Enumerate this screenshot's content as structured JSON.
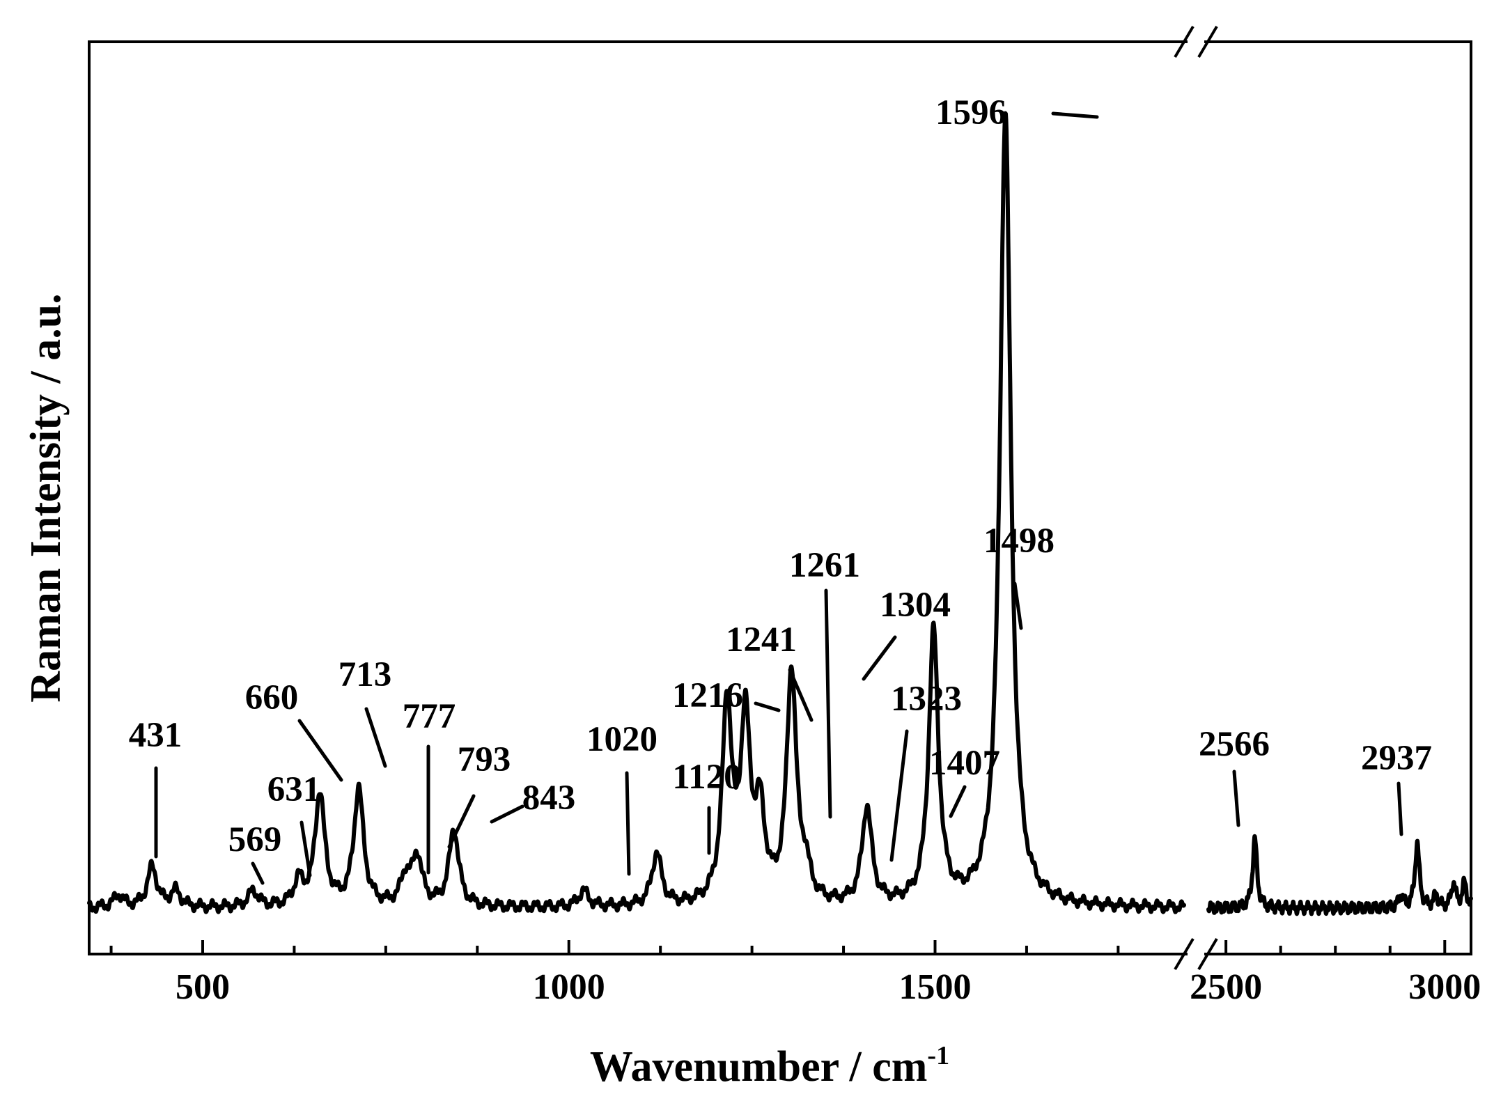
{
  "chart_data": {
    "type": "line",
    "xlabel": "Wavenumber / cm",
    "xlabel_superscript": "-1",
    "ylabel": "Raman Intensity / a.u.",
    "x_axis_break": true,
    "segments": [
      {
        "xlim": [
          345,
          1840
        ],
        "ticks": [
          500,
          1000,
          1500
        ],
        "minor_step": 125
      },
      {
        "xlim": [
          2460,
          3060
        ],
        "ticks": [
          2500,
          3000
        ],
        "minor_step": 125
      }
    ],
    "ylim": [
      0,
      100
    ],
    "baseline": 3.5,
    "peaks": [
      {
        "x": 385,
        "y": 5
      },
      {
        "x": 431,
        "y": 8.5,
        "label": "431"
      },
      {
        "x": 463,
        "y": 5.5
      },
      {
        "x": 569,
        "y": 5.5,
        "label": "569"
      },
      {
        "x": 631,
        "y": 6.5,
        "label": "631"
      },
      {
        "x": 660,
        "y": 17.5,
        "label": "660"
      },
      {
        "x": 713,
        "y": 18,
        "label": "713"
      },
      {
        "x": 777,
        "y": 7,
        "label": "777"
      },
      {
        "x": 793,
        "y": 9.5,
        "label": "793"
      },
      {
        "x": 843,
        "y": 13,
        "label": "843"
      },
      {
        "x": 1020,
        "y": 5.5,
        "label": "1020"
      },
      {
        "x": 1120,
        "y": 10,
        "label": "1120"
      },
      {
        "x": 1216,
        "y": 28,
        "label": "1216"
      },
      {
        "x": 1241,
        "y": 25.5,
        "label": "1241"
      },
      {
        "x": 1261,
        "y": 14,
        "label": "1261"
      },
      {
        "x": 1304,
        "y": 32,
        "label": "1304"
      },
      {
        "x": 1323,
        "y": 7,
        "label": "1323"
      },
      {
        "x": 1407,
        "y": 15.5,
        "label": "1407"
      },
      {
        "x": 1498,
        "y": 37,
        "label": "1498"
      },
      {
        "x": 1596,
        "y": 101,
        "label": "1596"
      },
      {
        "x": 2566,
        "y": 12,
        "label": "2566"
      },
      {
        "x": 2900,
        "y": 5
      },
      {
        "x": 2937,
        "y": 11.5,
        "label": "2937"
      },
      {
        "x": 2980,
        "y": 5
      },
      {
        "x": 3020,
        "y": 6.5
      },
      {
        "x": 3045,
        "y": 6.5
      }
    ]
  }
}
